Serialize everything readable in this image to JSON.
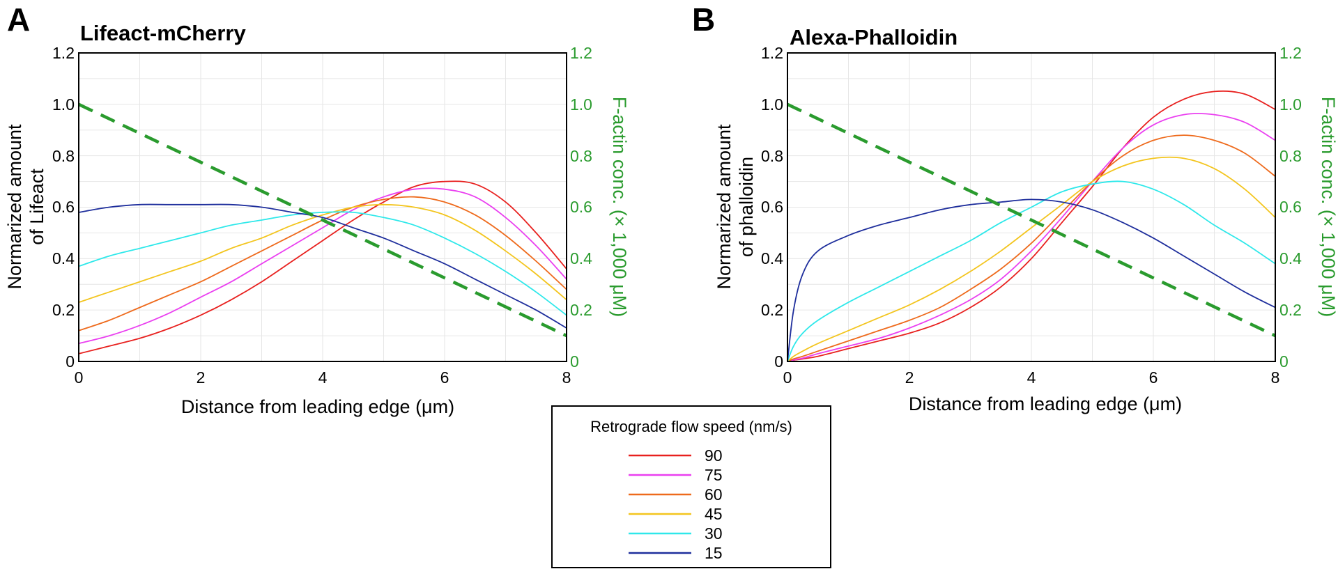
{
  "colors": {
    "s90": "#e8201e",
    "s75": "#ea3ff0",
    "s60": "#ee6a1c",
    "s45": "#f3c51e",
    "s30": "#2ee8ea",
    "s15": "#1e2e9c",
    "factin": "#2a9b2e",
    "grid": "#e6e6e6"
  },
  "legend": {
    "title": "Retrograde flow speed (nm/s)",
    "entries": [
      "90",
      "75",
      "60",
      "45",
      "30",
      "15"
    ]
  },
  "chart_data": [
    {
      "type": "line",
      "panel_letter": "A",
      "title": "Lifeact-mCherry",
      "xlabel": "Distance from leading edge (μm)",
      "ylabel_line1": "Normarized amount",
      "ylabel_line2": "of Lifeact",
      "y2label": "F-actin conc. (× 1,000 μM)",
      "xlim": [
        0,
        8
      ],
      "ylim": [
        0,
        1.2
      ],
      "y2lim": [
        0,
        1.2
      ],
      "x_ticks": [
        "0",
        "2",
        "4",
        "6",
        "8"
      ],
      "y_ticks": [
        "0",
        "0.2",
        "0.4",
        "0.6",
        "0.8",
        "1.0",
        "1.2"
      ],
      "y2_ticks": [
        "0",
        "0.2",
        "0.4",
        "0.6",
        "0.8",
        "1.0",
        "1.2"
      ],
      "grid": true,
      "x": [
        0,
        0.5,
        1,
        1.5,
        2,
        2.5,
        3,
        3.5,
        4,
        4.5,
        5,
        5.5,
        6,
        6.5,
        7,
        7.5,
        8
      ],
      "series": [
        {
          "name": "90",
          "values": [
            0.03,
            0.06,
            0.09,
            0.13,
            0.18,
            0.24,
            0.31,
            0.39,
            0.47,
            0.55,
            0.62,
            0.68,
            0.7,
            0.69,
            0.62,
            0.5,
            0.36
          ]
        },
        {
          "name": "75",
          "values": [
            0.07,
            0.1,
            0.14,
            0.19,
            0.25,
            0.31,
            0.38,
            0.45,
            0.52,
            0.59,
            0.64,
            0.67,
            0.67,
            0.64,
            0.56,
            0.45,
            0.32
          ]
        },
        {
          "name": "60",
          "values": [
            0.12,
            0.16,
            0.21,
            0.26,
            0.31,
            0.37,
            0.43,
            0.49,
            0.55,
            0.6,
            0.63,
            0.64,
            0.62,
            0.57,
            0.49,
            0.39,
            0.28
          ]
        },
        {
          "name": "45",
          "values": [
            0.23,
            0.27,
            0.31,
            0.35,
            0.39,
            0.44,
            0.48,
            0.53,
            0.57,
            0.6,
            0.61,
            0.6,
            0.57,
            0.51,
            0.43,
            0.34,
            0.24
          ]
        },
        {
          "name": "30",
          "values": [
            0.37,
            0.41,
            0.44,
            0.47,
            0.5,
            0.53,
            0.55,
            0.57,
            0.58,
            0.58,
            0.56,
            0.53,
            0.48,
            0.42,
            0.35,
            0.27,
            0.18
          ]
        },
        {
          "name": "15",
          "values": [
            0.58,
            0.6,
            0.61,
            0.61,
            0.61,
            0.61,
            0.6,
            0.58,
            0.56,
            0.52,
            0.48,
            0.43,
            0.38,
            0.32,
            0.26,
            0.2,
            0.13
          ]
        }
      ],
      "factin": {
        "x": [
          0,
          8
        ],
        "values": [
          1.0,
          0.1
        ]
      }
    },
    {
      "type": "line",
      "panel_letter": "B",
      "title": "Alexa-Phalloidin",
      "xlabel": "Distance from leading edge (μm)",
      "ylabel_line1": "Normarized amount",
      "ylabel_line2": "of phalloidin",
      "y2label": "F-actin conc. (× 1,000 μM)",
      "xlim": [
        0,
        8
      ],
      "ylim": [
        0,
        1.2
      ],
      "y2lim": [
        0,
        1.2
      ],
      "x_ticks": [
        "0",
        "2",
        "4",
        "6",
        "8"
      ],
      "y_ticks": [
        "0",
        "0.2",
        "0.4",
        "0.6",
        "0.8",
        "1.0",
        "1.2"
      ],
      "y2_ticks": [
        "0",
        "0.2",
        "0.4",
        "0.6",
        "0.8",
        "1.0",
        "1.2"
      ],
      "grid": true,
      "x": [
        0,
        0.1,
        0.25,
        0.5,
        1,
        1.5,
        2,
        2.5,
        3,
        3.5,
        4,
        4.5,
        5,
        5.5,
        6,
        6.5,
        7,
        7.5,
        8
      ],
      "series": [
        {
          "name": "90",
          "values": [
            0,
            0.005,
            0.01,
            0.02,
            0.05,
            0.08,
            0.11,
            0.15,
            0.21,
            0.29,
            0.4,
            0.54,
            0.68,
            0.83,
            0.95,
            1.02,
            1.05,
            1.04,
            0.98
          ]
        },
        {
          "name": "75",
          "values": [
            0,
            0.006,
            0.013,
            0.03,
            0.06,
            0.09,
            0.13,
            0.18,
            0.24,
            0.32,
            0.43,
            0.56,
            0.7,
            0.83,
            0.92,
            0.96,
            0.96,
            0.93,
            0.86
          ]
        },
        {
          "name": "60",
          "values": [
            0,
            0.01,
            0.02,
            0.04,
            0.08,
            0.12,
            0.16,
            0.21,
            0.28,
            0.36,
            0.46,
            0.58,
            0.7,
            0.8,
            0.86,
            0.88,
            0.86,
            0.81,
            0.72
          ]
        },
        {
          "name": "45",
          "values": [
            0,
            0.02,
            0.04,
            0.07,
            0.12,
            0.17,
            0.22,
            0.28,
            0.35,
            0.43,
            0.52,
            0.61,
            0.7,
            0.76,
            0.79,
            0.79,
            0.75,
            0.67,
            0.56
          ]
        },
        {
          "name": "30",
          "values": [
            0,
            0.06,
            0.11,
            0.16,
            0.23,
            0.29,
            0.35,
            0.41,
            0.47,
            0.54,
            0.6,
            0.66,
            0.69,
            0.7,
            0.67,
            0.61,
            0.53,
            0.46,
            0.38
          ]
        },
        {
          "name": "15",
          "values": [
            0,
            0.2,
            0.34,
            0.43,
            0.49,
            0.53,
            0.56,
            0.59,
            0.61,
            0.62,
            0.63,
            0.62,
            0.59,
            0.54,
            0.48,
            0.41,
            0.34,
            0.27,
            0.21
          ]
        }
      ],
      "factin": {
        "x": [
          0,
          8
        ],
        "values": [
          1.0,
          0.1
        ]
      }
    }
  ]
}
